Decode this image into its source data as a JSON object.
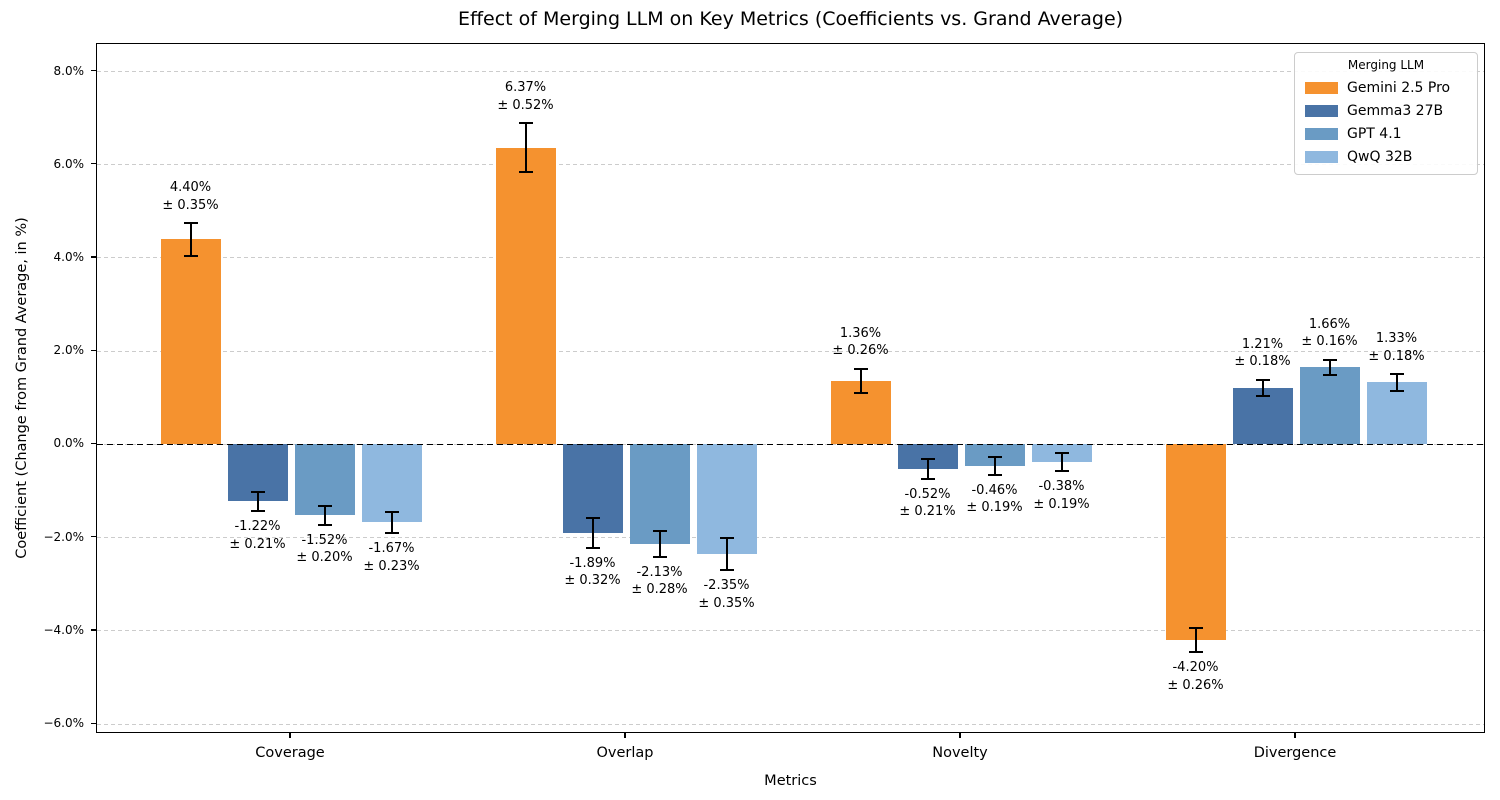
{
  "chart_data": {
    "type": "bar",
    "title": "Effect of Merging LLM on Key Metrics (Coefficients vs. Grand Average)",
    "xlabel": "Metrics",
    "ylabel": "Coefficient (Change from Grand Average, in %)",
    "categories": [
      "Coverage",
      "Overlap",
      "Novelty",
      "Divergence"
    ],
    "series": [
      {
        "name": "Gemini 2.5 Pro",
        "color": "#F5922F",
        "values": [
          4.4,
          6.37,
          1.36,
          -4.2
        ],
        "errors": [
          0.35,
          0.52,
          0.26,
          0.26
        ]
      },
      {
        "name": "Gemma3 27B",
        "color": "#4973A6",
        "values": [
          -1.22,
          -1.89,
          -0.52,
          1.21
        ],
        "errors": [
          0.21,
          0.32,
          0.21,
          0.18
        ]
      },
      {
        "name": "GPT 4.1",
        "color": "#6A9BC4",
        "values": [
          -1.52,
          -2.13,
          -0.46,
          1.66
        ],
        "errors": [
          0.2,
          0.28,
          0.19,
          0.16
        ]
      },
      {
        "name": "QwQ 32B",
        "color": "#8FB8DF",
        "values": [
          -1.67,
          -2.35,
          -0.38,
          1.33
        ],
        "errors": [
          0.23,
          0.35,
          0.19,
          0.18
        ]
      }
    ],
    "legend": {
      "title": "Merging LLM",
      "position": "upper right",
      "entries": [
        "Gemini 2.5 Pro",
        "Gemma3 27B",
        "GPT 4.1",
        "QwQ 32B"
      ]
    },
    "yticks": [
      8,
      6,
      4,
      2,
      0,
      -2,
      -4,
      -6
    ],
    "ytick_labels": [
      "8.0%",
      "6.0%",
      "4.0%",
      "2.0%",
      "0.0%",
      "−2.0%",
      "−4.0%",
      "−6.0%"
    ],
    "ylim": [
      -6.21,
      8.59
    ],
    "grid": true,
    "zero_line_dashed": true,
    "error_bars": true,
    "annotation_plus_minus": "±",
    "colors": {
      "grid": "#cccccc",
      "axis": "#000000",
      "text": "#000000",
      "background": "#ffffff"
    }
  }
}
